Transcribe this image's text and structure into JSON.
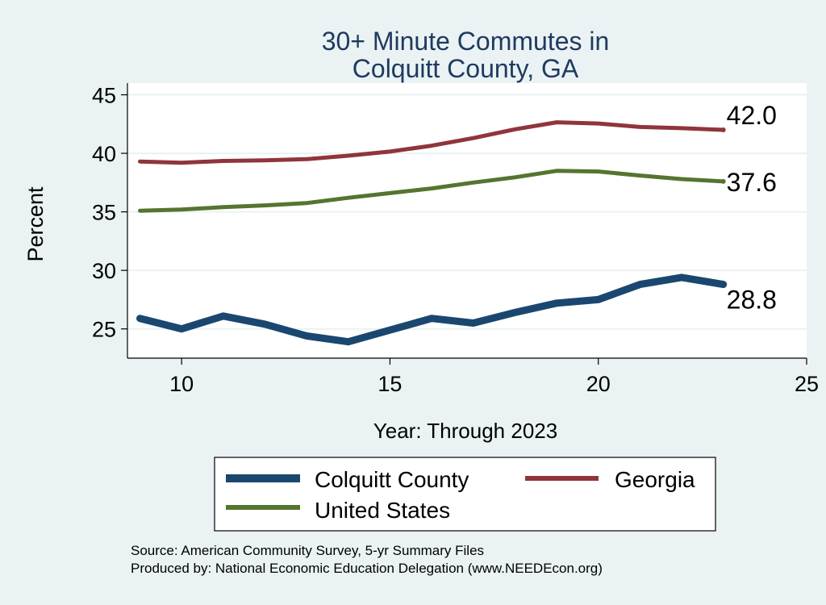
{
  "chart_data": {
    "type": "line",
    "title_lines": [
      "30+ Minute Commutes in",
      "Colquitt County, GA"
    ],
    "xlabel": "Year: Through 2023",
    "ylabel": "Percent",
    "xlim": [
      8.7,
      25
    ],
    "ylim": [
      22.5,
      46
    ],
    "x_ticks": [
      10,
      15,
      20,
      25
    ],
    "y_ticks": [
      25,
      30,
      35,
      40,
      45
    ],
    "x": [
      9,
      10,
      11,
      12,
      13,
      14,
      15,
      16,
      17,
      18,
      19,
      20,
      21,
      22,
      23
    ],
    "series": [
      {
        "name": "Colquitt County",
        "color": "#1a476f",
        "values": [
          25.9,
          25.0,
          26.1,
          25.4,
          24.4,
          23.9,
          24.9,
          25.9,
          25.5,
          26.4,
          27.2,
          27.5,
          28.8,
          29.4,
          28.8
        ],
        "end_label": "28.8"
      },
      {
        "name": "Georgia",
        "color": "#90353b",
        "values": [
          39.3,
          39.2,
          39.35,
          39.4,
          39.5,
          39.8,
          40.15,
          40.65,
          41.3,
          42.05,
          42.65,
          42.55,
          42.25,
          42.15,
          42.0
        ],
        "end_label": "42.0"
      },
      {
        "name": "United States",
        "color": "#55752f",
        "values": [
          35.1,
          35.2,
          35.4,
          35.55,
          35.75,
          36.2,
          36.6,
          37.0,
          37.5,
          37.95,
          38.5,
          38.45,
          38.1,
          37.8,
          37.6
        ],
        "end_label": "37.6"
      }
    ],
    "legend_position": "bottom",
    "grid": true
  },
  "source_note": "Source: American Community Survey, 5-yr Summary Files",
  "produced_note": "Produced by: National Economic Education Delegation (www.NEEDEcon.org)"
}
